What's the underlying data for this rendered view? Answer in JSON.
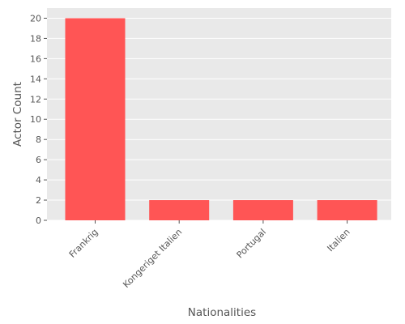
{
  "chart_data": {
    "type": "bar",
    "title": "",
    "xlabel": "Nationalities",
    "ylabel": "Actor Count",
    "categories": [
      "Frankrig",
      "Kongeriget Italien",
      "Portugal",
      "Italien"
    ],
    "values": [
      20,
      2,
      2,
      2
    ],
    "ylim": [
      0,
      21
    ],
    "yticks": [
      0,
      2,
      4,
      6,
      8,
      10,
      12,
      14,
      16,
      18,
      20
    ],
    "grid": true,
    "legend": "none",
    "colors": {
      "bar": "#ff5555",
      "plot_background": "#e9e9e9",
      "grid": "#ffffff",
      "text": "#555555"
    }
  }
}
